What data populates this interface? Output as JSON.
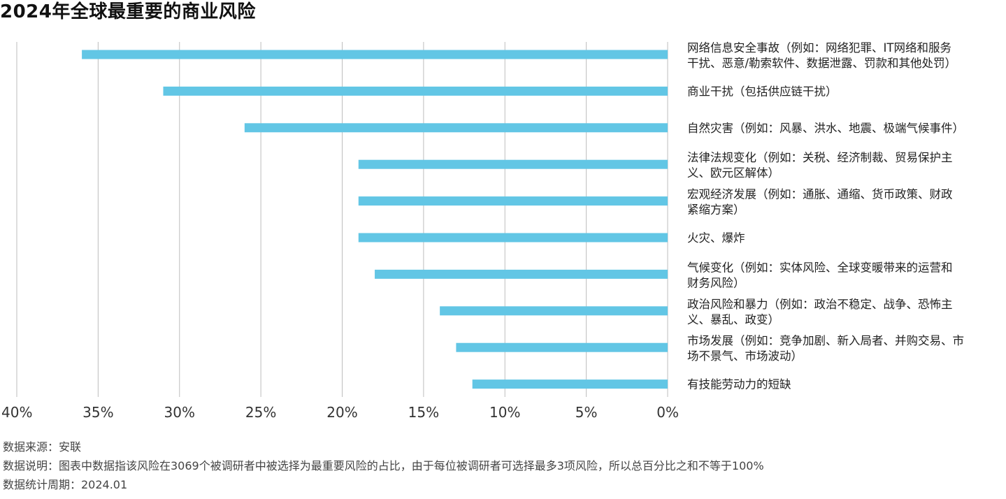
{
  "title": "2024年全球最重要的商业风险",
  "chart_data": {
    "type": "bar",
    "orientation": "horizontal",
    "x_direction": "reversed",
    "categories": [
      [
        "网络信息安全事故（例如：网络犯罪、IT网络和服务",
        "干扰、恶意/勒索软件、数据泄露、罚款和其他处罚）"
      ],
      [
        "商业干扰（包括供应链干扰）"
      ],
      [
        "自然灾害（例如：风暴、洪水、地震、极端气候事件）"
      ],
      [
        "法律法规变化（例如：关税、经济制裁、贸易保护主",
        "义、欧元区解体）"
      ],
      [
        "宏观经济发展（例如：通胀、通缩、货币政策、财政",
        "紧缩方案）"
      ],
      [
        "火灾、爆炸"
      ],
      [
        "气候变化（例如：实体风险、全球变暖带来的运营和",
        "财务风险）"
      ],
      [
        "政治风险和暴力（例如：政治不稳定、战争、恐怖主",
        "义、暴乱、政变）"
      ],
      [
        "市场发展（例如：竞争加剧、新入局者、并购交易、市",
        "场不景气、市场波动）"
      ],
      [
        "有技能劳动力的短缺"
      ]
    ],
    "values": [
      36,
      31,
      26,
      19,
      19,
      19,
      18,
      14,
      13,
      12
    ],
    "xlim": [
      0,
      40
    ],
    "ticks": [
      "40%",
      "35%",
      "30%",
      "25%",
      "20%",
      "15%",
      "10%",
      "5%",
      "0%"
    ],
    "tick_values": [
      40,
      35,
      30,
      25,
      20,
      15,
      10,
      5,
      0
    ],
    "grid": true,
    "bar_color": "#62c6e5",
    "grid_color": "#bdbdbd"
  },
  "footnotes": {
    "source": "数据来源：安联",
    "note": "数据说明：图表中数据指该风险在3069个被调研者中被选择为最重要风险的占比，由于每位被调研者可选择最多3项风险，所以总百分比之和不等于100%",
    "period": "数据统计周期：2024.01"
  }
}
